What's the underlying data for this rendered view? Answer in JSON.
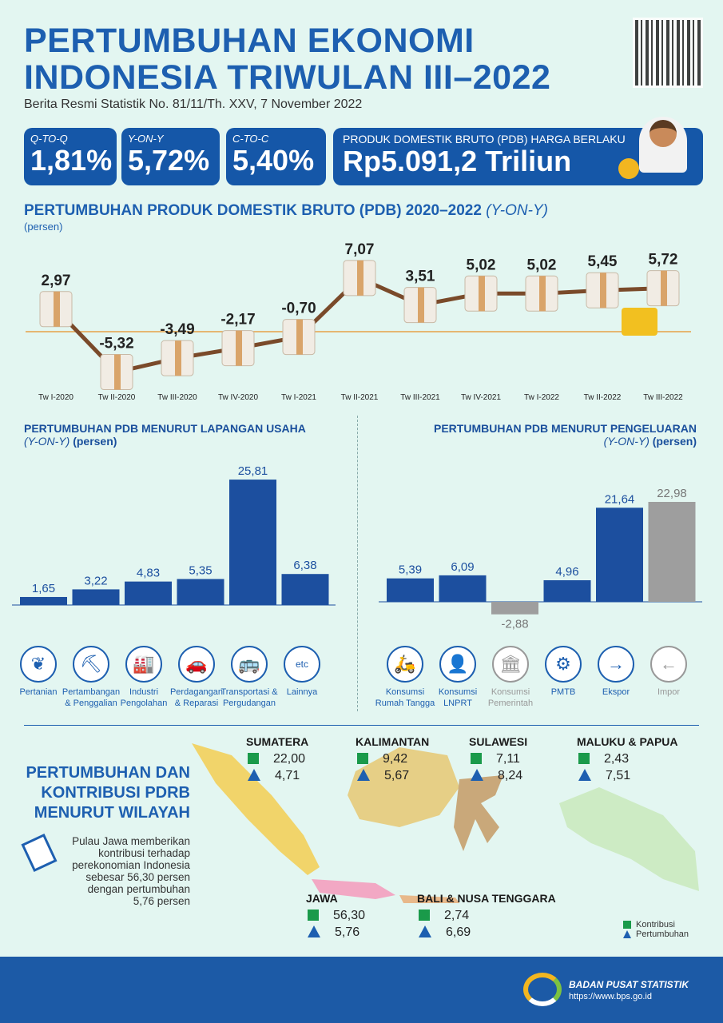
{
  "header": {
    "title_line1": "PERTUMBUHAN EKONOMI",
    "title_line2": "INDONESIA TRIWULAN III–2022",
    "subtitle": "Berita Resmi Statistik No. 81/11/Th. XXV, 7 November 2022"
  },
  "kpis": [
    {
      "label": "Q-TO-Q",
      "value": "1,81%"
    },
    {
      "label": "Y-ON-Y",
      "value": "5,72%"
    },
    {
      "label": "C-TO-C",
      "value": "5,40%"
    },
    {
      "label": "PRODUK DOMESTIK BRUTO (PDB) HARGA BERLAKU",
      "value": "Rp5.091,2 Triliun"
    }
  ],
  "colors": {
    "primary": "#1557a8",
    "bar_blue": "#1c4f9f",
    "bar_grey": "#9e9e9e",
    "background": "#e3f6f1",
    "line": "#7a4a2a",
    "contribution": "#1a9a4a",
    "growth": "#1d5fb0"
  },
  "chart_data": [
    {
      "type": "line",
      "title": "PERTUMBUHAN PRODUK DOMESTIK BRUTO (PDB) 2020–2022",
      "title_suffix": "(Y-ON-Y)",
      "ylabel": "(persen)",
      "categories": [
        "Tw I-2020",
        "Tw II-2020",
        "Tw III-2020",
        "Tw IV-2020",
        "Tw I-2021",
        "Tw II-2021",
        "Tw III-2021",
        "Tw IV-2021",
        "Tw I-2022",
        "Tw II-2022",
        "Tw III-2022"
      ],
      "values": [
        2.97,
        -5.32,
        -3.49,
        -2.17,
        -0.7,
        7.07,
        3.51,
        5.02,
        5.02,
        5.45,
        5.72
      ],
      "labels": [
        "2,97",
        "-5,32",
        "-3,49",
        "-2,17",
        "-0,70",
        "7,07",
        "3,51",
        "5,02",
        "5,02",
        "5,45",
        "5,72"
      ]
    },
    {
      "type": "bar",
      "title": "PERTUMBUHAN PDB MENURUT LAPANGAN USAHA",
      "subtitle_italic": "(Y-ON-Y)",
      "subtitle": "(persen)",
      "categories": [
        "Pertanian",
        "Pertambangan & Penggalian",
        "Industri Pengolahan",
        "Perdagangan & Reparasi",
        "Transportasi & Pergudangan",
        "Lainnya"
      ],
      "values": [
        1.65,
        3.22,
        4.83,
        5.35,
        25.81,
        6.38
      ],
      "labels": [
        "1,65",
        "3,22",
        "4,83",
        "5,35",
        "25,81",
        "6,38"
      ]
    },
    {
      "type": "bar",
      "title": "PERTUMBUHAN PDB MENURUT PENGELUARAN",
      "subtitle_italic": "(Y-ON-Y)",
      "subtitle": "(persen)",
      "categories": [
        "Konsumsi Rumah Tangga",
        "Konsumsi LNPRT",
        "Konsumsi Pemerintah",
        "PMTB",
        "Ekspor",
        "Impor"
      ],
      "values": [
        5.39,
        6.09,
        -2.88,
        4.96,
        21.64,
        22.98
      ],
      "labels": [
        "5,39",
        "6,09",
        "-2,88",
        "4,96",
        "21,64",
        "22,98"
      ],
      "greyed": [
        "Konsumsi Pemerintah",
        "Impor"
      ]
    }
  ],
  "icons_left": [
    {
      "icon": "leaf-icon",
      "glyph": "❦",
      "l1": "Pertanian",
      "l2": ""
    },
    {
      "icon": "oil-pump-icon",
      "glyph": "⛏",
      "l1": "Pertambangan",
      "l2": "& Penggalian"
    },
    {
      "icon": "factory-icon",
      "glyph": "🏭",
      "l1": "Industri",
      "l2": "Pengolahan"
    },
    {
      "icon": "trade-icon",
      "glyph": "🚗",
      "l1": "Perdagangan",
      "l2": "& Reparasi"
    },
    {
      "icon": "warehouse-icon",
      "glyph": "🚌",
      "l1": "Transportasi &",
      "l2": "Pergudangan"
    },
    {
      "icon": "etc-icon",
      "glyph": "etc",
      "l1": "Lainnya",
      "l2": ""
    }
  ],
  "icons_right": [
    {
      "icon": "household-icon",
      "glyph": "🛵",
      "l1": "Konsumsi",
      "l2": "Rumah Tangga"
    },
    {
      "icon": "person-icon",
      "glyph": "👤",
      "l1": "Konsumsi",
      "l2": "LNPRT"
    },
    {
      "icon": "government-icon",
      "glyph": "🏛",
      "l1": "Konsumsi",
      "l2": "Pemerintah"
    },
    {
      "icon": "robot-arm-icon",
      "glyph": "⚙",
      "l1": "PMTB",
      "l2": ""
    },
    {
      "icon": "export-ship-icon",
      "glyph": "→",
      "l1": "Ekspor",
      "l2": ""
    },
    {
      "icon": "import-ship-icon",
      "glyph": "←",
      "l1": "Impor",
      "l2": ""
    }
  ],
  "region": {
    "title1": "PERTUMBUHAN DAN",
    "title2": "KONTRIBUSI PDRB",
    "title3": "MENURUT WILAYAH",
    "note": "Pulau Jawa memberikan kontribusi terhadap perekonomian Indonesia sebesar 56,30 persen dengan pertumbuhan 5,76 persen",
    "items": [
      {
        "name": "SUMATERA",
        "kontribusi": "22,00",
        "pertumbuhan": "4,71"
      },
      {
        "name": "KALIMANTAN",
        "kontribusi": "9,42",
        "pertumbuhan": "5,67"
      },
      {
        "name": "SULAWESI",
        "kontribusi": "7,11",
        "pertumbuhan": "8,24"
      },
      {
        "name": "MALUKU & PAPUA",
        "kontribusi": "2,43",
        "pertumbuhan": "7,51"
      },
      {
        "name": "JAWA",
        "kontribusi": "56,30",
        "pertumbuhan": "5,76"
      },
      {
        "name": "BALI & NUSA TENGGARA",
        "kontribusi": "2,74",
        "pertumbuhan": "6,69"
      }
    ],
    "legend_kontribusi": "Kontribusi",
    "legend_pertumbuhan": "Pertumbuhan"
  },
  "footer": {
    "org": "BADAN PUSAT STATISTIK",
    "url": "https://www.bps.go.id"
  }
}
